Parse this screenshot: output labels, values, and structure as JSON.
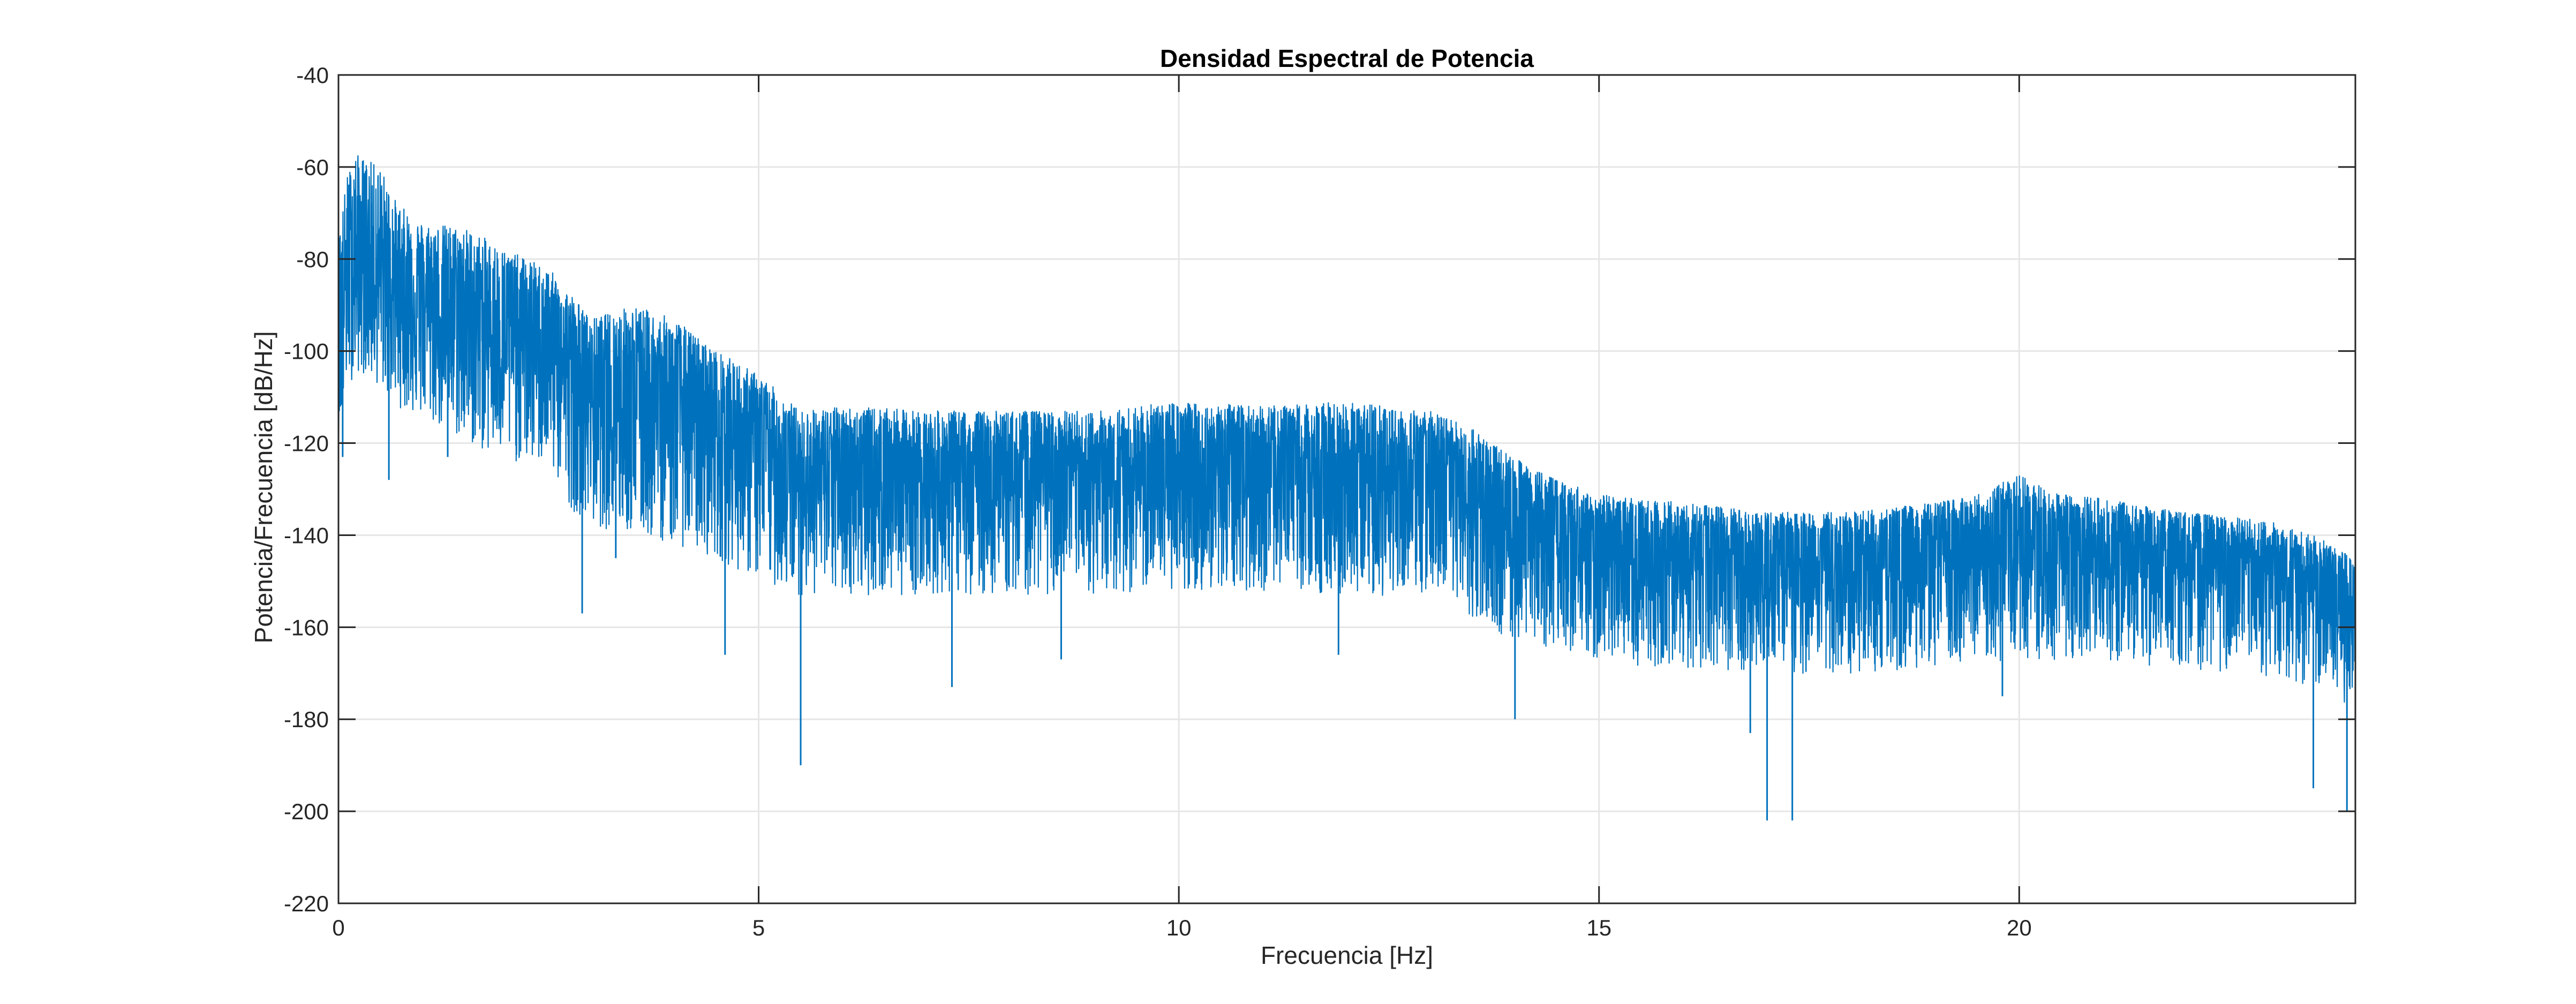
{
  "chart_data": {
    "type": "line",
    "title": "Densidad Espectral de Potencia",
    "xlabel": "Frecuencia [Hz]",
    "ylabel": "Potencia/Frecuencia [dB/Hz]",
    "xlim": [
      0,
      24
    ],
    "ylim": [
      -220,
      -40
    ],
    "xticks": [
      0,
      5,
      10,
      15,
      20
    ],
    "yticks": [
      -220,
      -200,
      -180,
      -160,
      -140,
      -120,
      -100,
      -80,
      -60,
      -40
    ],
    "xtick_labels": [
      "0",
      "5",
      "10",
      "15",
      "20"
    ],
    "ytick_labels": [
      "-220",
      "-200",
      "-180",
      "-160",
      "-140",
      "-120",
      "-100",
      "-80",
      "-60",
      "-40"
    ],
    "grid": true,
    "series_color": "#0072BD",
    "series": [
      {
        "style": "dense-noisy-spectrum",
        "envelope": {
          "x": [
            0,
            0.1,
            0.2,
            0.3,
            0.5,
            0.7,
            1.0,
            1.5,
            2.0,
            2.5,
            2.8,
            3.0,
            3.5,
            4.0,
            4.5,
            5.0,
            5.5,
            6.0,
            7.0,
            8.0,
            9.0,
            10.0,
            11.0,
            12.0,
            13.0,
            13.5,
            14.0,
            14.5,
            15.0,
            16.0,
            17.0,
            18.0,
            19.0,
            19.5,
            20.0,
            20.5,
            21.0,
            22.0,
            23.0,
            23.5,
            24.0
          ],
          "y_max": [
            -75,
            -62,
            -57,
            -58,
            -60,
            -68,
            -72,
            -73,
            -78,
            -82,
            -88,
            -93,
            -90,
            -93,
            -100,
            -105,
            -113,
            -112,
            -113,
            -113,
            -113,
            -111,
            -112,
            -111,
            -113,
            -117,
            -123,
            -128,
            -131,
            -133,
            -135,
            -135,
            -133,
            -131,
            -127,
            -131,
            -132,
            -135,
            -137,
            -140,
            -145
          ],
          "y_mean": [
            -95,
            -85,
            -82,
            -83,
            -85,
            -88,
            -90,
            -95,
            -98,
            -100,
            -107,
            -110,
            -112,
            -114,
            -117,
            -122,
            -127,
            -128,
            -128,
            -128,
            -128,
            -127,
            -127,
            -128,
            -129,
            -133,
            -138,
            -141,
            -145,
            -145,
            -146,
            -147,
            -145,
            -144,
            -143,
            -144,
            -145,
            -146,
            -148,
            -150,
            -158
          ],
          "y_min": [
            -120,
            -108,
            -105,
            -105,
            -108,
            -112,
            -115,
            -120,
            -124,
            -125,
            -135,
            -138,
            -140,
            -142,
            -145,
            -150,
            -153,
            -153,
            -153,
            -153,
            -153,
            -152,
            -152,
            -153,
            -155,
            -159,
            -163,
            -165,
            -168,
            -169,
            -170,
            -170,
            -169,
            -168,
            -167,
            -167,
            -168,
            -169,
            -171,
            -173,
            -178
          ]
        },
        "spikes": [
          {
            "x": 0.05,
            "y": -123
          },
          {
            "x": 0.6,
            "y": -128
          },
          {
            "x": 1.3,
            "y": -123
          },
          {
            "x": 2.9,
            "y": -157
          },
          {
            "x": 3.3,
            "y": -145
          },
          {
            "x": 4.6,
            "y": -166
          },
          {
            "x": 5.5,
            "y": -190
          },
          {
            "x": 7.3,
            "y": -173
          },
          {
            "x": 8.6,
            "y": -167
          },
          {
            "x": 11.9,
            "y": -166
          },
          {
            "x": 14.0,
            "y": -180
          },
          {
            "x": 16.8,
            "y": -183
          },
          {
            "x": 17.0,
            "y": -202
          },
          {
            "x": 17.3,
            "y": -202
          },
          {
            "x": 19.8,
            "y": -175
          },
          {
            "x": 23.5,
            "y": -195
          },
          {
            "x": 23.9,
            "y": -200
          }
        ]
      }
    ]
  }
}
